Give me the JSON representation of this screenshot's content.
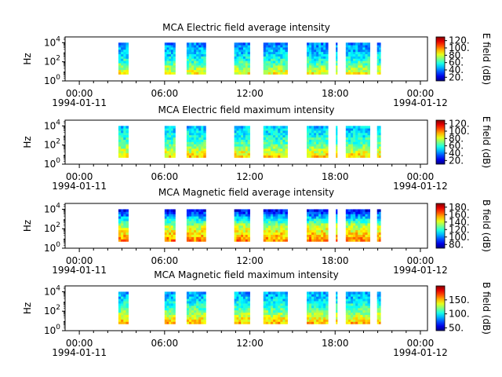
{
  "chart_data": [
    {
      "type": "heatmap",
      "title": "MCA  Electric field average intensity",
      "ylabel": "Hz",
      "ylim_exponents": [
        0,
        4.6
      ],
      "y_ticks": [
        {
          "base": "10",
          "exp": "0",
          "v": 0
        },
        {
          "base": "10",
          "exp": "2",
          "v": 2
        },
        {
          "base": "10",
          "exp": "4",
          "v": 4
        }
      ],
      "xlim_hours": [
        -1,
        24.5
      ],
      "x_ticks": [
        {
          "t": 0,
          "label": "00:00",
          "date": "1994-01-11"
        },
        {
          "t": 6,
          "label": "06:00",
          "date": ""
        },
        {
          "t": 12,
          "label": "12:00",
          "date": ""
        },
        {
          "t": 18,
          "label": "18:00",
          "date": ""
        },
        {
          "t": 24,
          "label": "00:00",
          "date": "1994-01-12"
        }
      ],
      "colorbar": {
        "label": "E field (dB)",
        "min": 10,
        "max": 130,
        "ticks": [
          {
            "v": 20,
            "label": "20."
          },
          {
            "v": 40,
            "label": "40."
          },
          {
            "v": 60,
            "label": "60."
          },
          {
            "v": 80,
            "label": "80."
          },
          {
            "v": 100,
            "label": "100."
          },
          {
            "v": 120,
            "label": "120."
          }
        ]
      },
      "data_intervals_hours": [
        [
          2.75,
          3.45
        ],
        [
          6.0,
          6.75
        ],
        [
          7.55,
          8.9
        ],
        [
          10.9,
          12.0
        ],
        [
          12.95,
          14.65
        ],
        [
          16.0,
          17.5
        ],
        [
          18.05,
          18.15
        ],
        [
          18.75,
          20.45
        ],
        [
          20.95,
          21.2
        ]
      ],
      "intensity_profile": {
        "low_freq": 85,
        "mid_freq": 55,
        "high_freq": 40
      }
    },
    {
      "type": "heatmap",
      "title": "MCA  Electric field maximum intensity",
      "ylabel": "Hz",
      "ylim_exponents": [
        0,
        4.6
      ],
      "y_ticks": [
        {
          "base": "10",
          "exp": "0",
          "v": 0
        },
        {
          "base": "10",
          "exp": "2",
          "v": 2
        },
        {
          "base": "10",
          "exp": "4",
          "v": 4
        }
      ],
      "xlim_hours": [
        -1,
        24.5
      ],
      "x_ticks": [
        {
          "t": 0,
          "label": "00:00",
          "date": "1994-01-11"
        },
        {
          "t": 6,
          "label": "06:00",
          "date": ""
        },
        {
          "t": 12,
          "label": "12:00",
          "date": ""
        },
        {
          "t": 18,
          "label": "18:00",
          "date": ""
        },
        {
          "t": 24,
          "label": "00:00",
          "date": "1994-01-12"
        }
      ],
      "colorbar": {
        "label": "E field (dB)",
        "min": 10,
        "max": 130,
        "ticks": [
          {
            "v": 20,
            "label": "20."
          },
          {
            "v": 40,
            "label": "40."
          },
          {
            "v": 60,
            "label": "60."
          },
          {
            "v": 80,
            "label": "80."
          },
          {
            "v": 100,
            "label": "100."
          },
          {
            "v": 120,
            "label": "120."
          }
        ]
      },
      "data_intervals_hours": [
        [
          2.75,
          3.45
        ],
        [
          6.0,
          6.75
        ],
        [
          7.55,
          8.9
        ],
        [
          10.9,
          12.0
        ],
        [
          12.95,
          14.65
        ],
        [
          16.0,
          17.5
        ],
        [
          18.05,
          18.15
        ],
        [
          18.75,
          20.45
        ],
        [
          20.95,
          21.2
        ]
      ],
      "intensity_profile": {
        "low_freq": 90,
        "mid_freq": 62,
        "high_freq": 48
      }
    },
    {
      "type": "heatmap",
      "title": "MCA  Magnetic field average intensity",
      "ylabel": "Hz",
      "ylim_exponents": [
        0,
        4.6
      ],
      "y_ticks": [
        {
          "base": "10",
          "exp": "0",
          "v": 0
        },
        {
          "base": "10",
          "exp": "2",
          "v": 2
        },
        {
          "base": "10",
          "exp": "4",
          "v": 4
        }
      ],
      "xlim_hours": [
        -1,
        24.5
      ],
      "x_ticks": [
        {
          "t": 0,
          "label": "00:00",
          "date": "1994-01-11"
        },
        {
          "t": 6,
          "label": "06:00",
          "date": ""
        },
        {
          "t": 12,
          "label": "12:00",
          "date": ""
        },
        {
          "t": 18,
          "label": "18:00",
          "date": ""
        },
        {
          "t": 24,
          "label": "00:00",
          "date": "1994-01-12"
        }
      ],
      "colorbar": {
        "label": "B field (dB)",
        "min": 70,
        "max": 190,
        "ticks": [
          {
            "v": 80,
            "label": "80."
          },
          {
            "v": 100,
            "label": "100."
          },
          {
            "v": 120,
            "label": "120."
          },
          {
            "v": 140,
            "label": "140."
          },
          {
            "v": 160,
            "label": "160."
          },
          {
            "v": 180,
            "label": "180."
          }
        ]
      },
      "data_intervals_hours": [
        [
          2.75,
          3.45
        ],
        [
          6.0,
          6.75
        ],
        [
          7.55,
          8.9
        ],
        [
          10.9,
          12.0
        ],
        [
          12.95,
          14.65
        ],
        [
          16.0,
          17.5
        ],
        [
          18.05,
          18.15
        ],
        [
          18.75,
          20.45
        ],
        [
          20.95,
          21.2
        ]
      ],
      "intensity_profile": {
        "low_freq": 160,
        "mid_freq": 135,
        "high_freq": 85
      }
    },
    {
      "type": "heatmap",
      "title": "MCA  Magnetic field maximum intensity",
      "ylabel": "Hz",
      "ylim_exponents": [
        0,
        4.6
      ],
      "y_ticks": [
        {
          "base": "10",
          "exp": "0",
          "v": 0
        },
        {
          "base": "10",
          "exp": "2",
          "v": 2
        },
        {
          "base": "10",
          "exp": "4",
          "v": 4
        }
      ],
      "xlim_hours": [
        -1,
        24.5
      ],
      "x_ticks": [
        {
          "t": 0,
          "label": "00:00",
          "date": "1994-01-11"
        },
        {
          "t": 6,
          "label": "06:00",
          "date": ""
        },
        {
          "t": 12,
          "label": "12:00",
          "date": ""
        },
        {
          "t": 18,
          "label": "18:00",
          "date": ""
        },
        {
          "t": 24,
          "label": "00:00",
          "date": "1994-01-12"
        }
      ],
      "colorbar": {
        "label": "B field (dB)",
        "min": 40,
        "max": 200,
        "ticks": [
          {
            "v": 50,
            "label": "50."
          },
          {
            "v": 100,
            "label": "100."
          },
          {
            "v": 150,
            "label": "150."
          }
        ]
      },
      "data_intervals_hours": [
        [
          2.75,
          3.45
        ],
        [
          6.0,
          6.75
        ],
        [
          7.55,
          8.9
        ],
        [
          10.9,
          12.0
        ],
        [
          12.95,
          14.65
        ],
        [
          16.0,
          17.5
        ],
        [
          18.05,
          18.15
        ],
        [
          18.75,
          20.45
        ],
        [
          20.95,
          21.2
        ]
      ],
      "intensity_profile": {
        "low_freq": 150,
        "mid_freq": 110,
        "high_freq": 85
      }
    }
  ]
}
